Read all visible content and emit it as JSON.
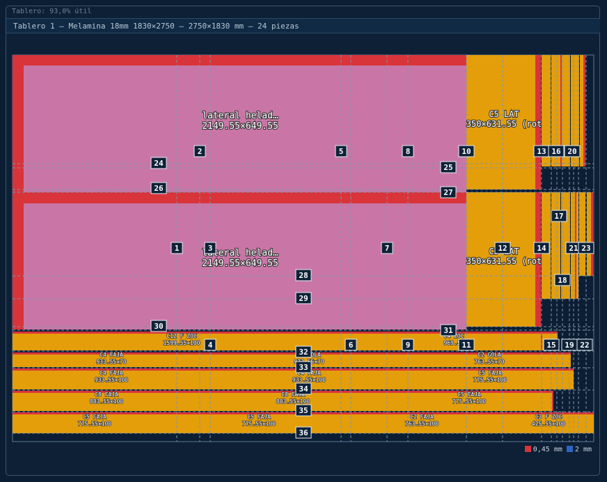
{
  "status_line": "Tablero: 93,0% útil",
  "board_header": "Tablero 1 — Melamina 18mm 1830×2750 — 2750×1830 mm — 24 piezas",
  "legend": [
    {
      "label": "0,45 mm",
      "color": "#d8343a"
    },
    {
      "label": "2 mm",
      "color": "#2f64c4"
    }
  ],
  "colors": {
    "board_bg": "#0b1e33",
    "pink_piece": "#c976a6",
    "orange_piece": "#e39e0a",
    "edge_band": "#d8343a",
    "cut_line": "#8aa0b8"
  },
  "pieces": [
    {
      "id": "lat1",
      "name": "lateral helad…",
      "size": "2149.55×649.55"
    },
    {
      "id": "lat2",
      "name": "lateral helad…",
      "size": "2149.55×649.55"
    },
    {
      "id": "c5lat1",
      "name": "C5 LAT",
      "size": "350×631.55 (rot"
    },
    {
      "id": "c5lat2",
      "name": "C5 LAT",
      "size": "350×631.55 (rot"
    },
    {
      "id": "c12",
      "name": "C12 F ZOC",
      "size": "1599.55×100"
    },
    {
      "id": "c4zoc",
      "name": "C4 ZOC",
      "size": "969.55"
    },
    {
      "id": "c4faja1",
      "name": "C4 FAJA",
      "size": "933.55×70"
    },
    {
      "id": "c4gola",
      "name": "C4 GOLA",
      "size": "933.55×70"
    },
    {
      "id": "c2gola",
      "name": "C2 GOLA",
      "size": "763.55×70"
    },
    {
      "id": "c4faja2",
      "name": "C4 FAJA",
      "size": "933.55×100"
    },
    {
      "id": "c4faja3",
      "name": "C4 FAJA",
      "size": "933.55×100"
    },
    {
      "id": "c5faja1",
      "name": "C5 FAJA",
      "size": "775.55×100"
    },
    {
      "id": "c8faja1",
      "name": "C8 FAJA",
      "size": "883.55×100"
    },
    {
      "id": "c8faja2",
      "name": "C8 FAJA",
      "size": "883.55×100"
    },
    {
      "id": "c5faja2",
      "name": "C5 FAJA",
      "size": "775.55×100"
    },
    {
      "id": "c5faja3",
      "name": "C5 FAJA",
      "size": "775.55×100"
    },
    {
      "id": "c5faja4",
      "name": "C5 FAJA",
      "size": "775.55×100"
    },
    {
      "id": "c2faja",
      "name": "C2 FAJA",
      "size": "763.55×100"
    },
    {
      "id": "c3fzoc",
      "name": "C3 F ZOC",
      "size": "425.55×100"
    }
  ],
  "cut_markers": [
    "1",
    "2",
    "3",
    "4",
    "5",
    "6",
    "7",
    "8",
    "9",
    "10",
    "11",
    "12",
    "13",
    "14",
    "15",
    "16",
    "17",
    "18",
    "19",
    "20",
    "21",
    "22",
    "23",
    "24",
    "25",
    "26",
    "27",
    "28",
    "29",
    "30",
    "31",
    "32",
    "33",
    "34",
    "35",
    "36"
  ]
}
